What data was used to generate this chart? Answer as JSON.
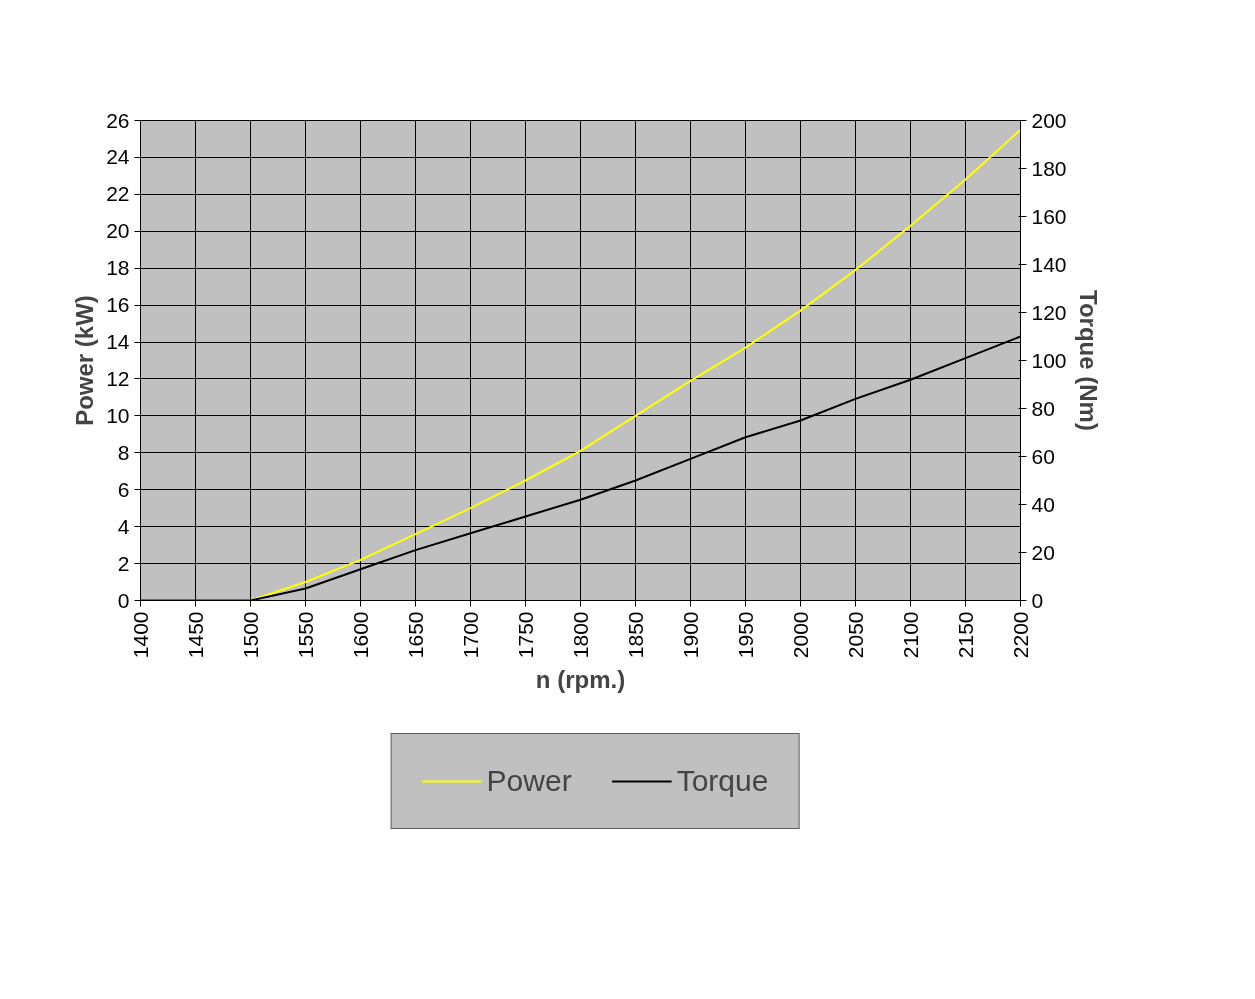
{
  "chart_data": {
    "type": "line",
    "xlabel": "n (rpm.)",
    "ylabel": "Power (kW)",
    "y2label": "Torque (Nm)",
    "x": [
      1400,
      1450,
      1500,
      1550,
      1600,
      1650,
      1700,
      1750,
      1800,
      1850,
      1900,
      1950,
      2000,
      2050,
      2100,
      2150,
      2200
    ],
    "series": [
      {
        "name": "Power",
        "color": "#ffff00",
        "values": [
          0,
          0,
          0,
          1.0,
          2.2,
          3.6,
          5.0,
          6.5,
          8.1,
          10.0,
          11.9,
          13.7,
          15.7,
          17.9,
          20.3,
          22.8,
          25.5
        ]
      },
      {
        "name": "Torque",
        "color": "#000000",
        "axis": "y2",
        "values": [
          0,
          0,
          0,
          5,
          13,
          21,
          28,
          35,
          42,
          50,
          59,
          68,
          75,
          84,
          92,
          101,
          110
        ]
      }
    ],
    "xlim": [
      1400,
      2200
    ],
    "xticks": [
      1400,
      1450,
      1500,
      1550,
      1600,
      1650,
      1700,
      1750,
      1800,
      1850,
      1900,
      1950,
      2000,
      2050,
      2100,
      2150,
      2200
    ],
    "ylim": [
      0,
      26
    ],
    "yticks": [
      0,
      2,
      4,
      6,
      8,
      10,
      12,
      14,
      16,
      18,
      20,
      22,
      24,
      26
    ],
    "y2lim": [
      0,
      200
    ],
    "y2ticks": [
      0,
      20,
      40,
      60,
      80,
      100,
      120,
      140,
      160,
      180,
      200
    ],
    "grid": true,
    "legend": "bottom",
    "marker": "none",
    "line_style": "solid"
  }
}
